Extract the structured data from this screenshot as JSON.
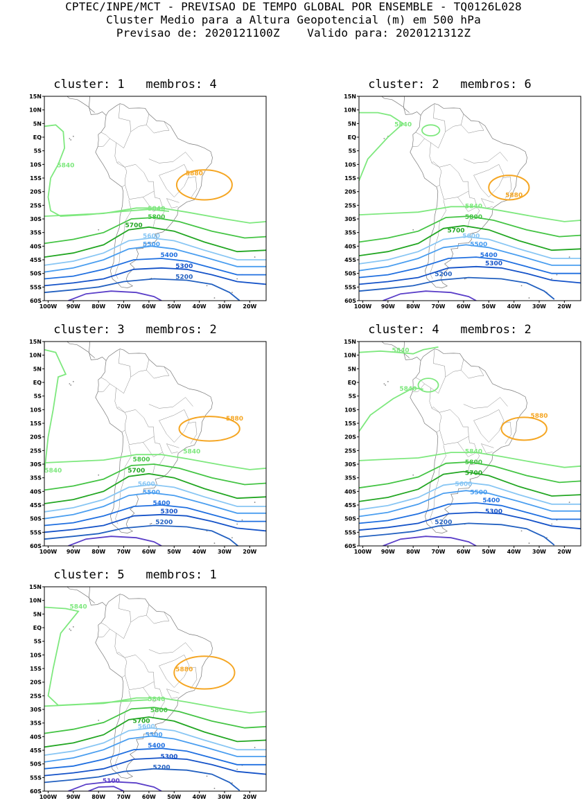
{
  "header": {
    "line1": "CPTEC/INPE/MCT - PREVISAO DE TEMPO GLOBAL POR ENSEMBLE - TQ0126L028",
    "line2": "Cluster Medio para a Altura Geopotencial (m) em 500 hPa",
    "line3": "Previsao de: 2020121100Z    Valido para: 2020121312Z"
  },
  "lat_ticks": [
    "15N",
    "10N",
    "5N",
    "EQ",
    "5S",
    "10S",
    "15S",
    "20S",
    "25S",
    "30S",
    "35S",
    "40S",
    "45S",
    "50S",
    "55S",
    "60S"
  ],
  "lon_ticks": [
    "100W",
    "90W",
    "80W",
    "70W",
    "60W",
    "50W",
    "40W",
    "30W",
    "20W"
  ],
  "contour_colors": {
    "5880": "#f5a623",
    "5840": "#7ee87e",
    "5800": "#44c444",
    "5700": "#22a622",
    "5600": "#88c6f4",
    "5500": "#4a9ef0",
    "5400": "#1f6fe0",
    "5300": "#1452c8",
    "5200": "#2260c0",
    "5100": "#5a3ec8"
  },
  "panels": [
    {
      "title": "cluster: 1   membros: 4",
      "labels": [
        {
          "text": "5880",
          "lon": -42,
          "lat": -14
        },
        {
          "text": "5840",
          "lon": -93,
          "lat": -11
        },
        {
          "text": "5840",
          "lon": -57,
          "lat": -27
        },
        {
          "text": "5800",
          "lon": -57,
          "lat": -30
        },
        {
          "text": "5700",
          "lon": -66,
          "lat": -33
        },
        {
          "text": "5600",
          "lon": -59,
          "lat": -37
        },
        {
          "text": "5500",
          "lon": -59,
          "lat": -40
        },
        {
          "text": "5400",
          "lon": -52,
          "lat": -44
        },
        {
          "text": "5300",
          "lon": -46,
          "lat": -48
        },
        {
          "text": "5200",
          "lon": -46,
          "lat": -52
        }
      ]
    },
    {
      "title": "cluster: 2   membros: 6",
      "labels": [
        {
          "text": "5840",
          "lon": -84,
          "lat": 4
        },
        {
          "text": "5880",
          "lon": -40,
          "lat": -22
        },
        {
          "text": "5840",
          "lon": -56,
          "lat": -26
        },
        {
          "text": "5800",
          "lon": -56,
          "lat": -30
        },
        {
          "text": "5700",
          "lon": -63,
          "lat": -35
        },
        {
          "text": "5600",
          "lon": -57,
          "lat": -37
        },
        {
          "text": "5500",
          "lon": -54,
          "lat": -40
        },
        {
          "text": "5400",
          "lon": -50,
          "lat": -44
        },
        {
          "text": "5300",
          "lon": -48,
          "lat": -47
        },
        {
          "text": "5200",
          "lon": -68,
          "lat": -51
        }
      ]
    },
    {
      "title": "cluster: 3   membros: 2",
      "labels": [
        {
          "text": "5880",
          "lon": -26,
          "lat": -14
        },
        {
          "text": "5840",
          "lon": -43,
          "lat": -26
        },
        {
          "text": "5840",
          "lon": -98,
          "lat": -33
        },
        {
          "text": "5800",
          "lon": -63,
          "lat": -29
        },
        {
          "text": "5700",
          "lon": -65,
          "lat": -33
        },
        {
          "text": "5600",
          "lon": -61,
          "lat": -38
        },
        {
          "text": "5500",
          "lon": -59,
          "lat": -41
        },
        {
          "text": "5400",
          "lon": -55,
          "lat": -45
        },
        {
          "text": "5300",
          "lon": -52,
          "lat": -48
        },
        {
          "text": "5200",
          "lon": -54,
          "lat": -52
        }
      ]
    },
    {
      "title": "cluster: 4   membros: 2",
      "labels": [
        {
          "text": "5840",
          "lon": -85,
          "lat": 11
        },
        {
          "text": "5840",
          "lon": -82,
          "lat": -3
        },
        {
          "text": "5880",
          "lon": -30,
          "lat": -13
        },
        {
          "text": "5840",
          "lon": -56,
          "lat": -26
        },
        {
          "text": "5800",
          "lon": -56,
          "lat": -30
        },
        {
          "text": "5700",
          "lon": -56,
          "lat": -34
        },
        {
          "text": "5600",
          "lon": -60,
          "lat": -38
        },
        {
          "text": "5500",
          "lon": -54,
          "lat": -41
        },
        {
          "text": "5400",
          "lon": -49,
          "lat": -44
        },
        {
          "text": "5300",
          "lon": -48,
          "lat": -48
        },
        {
          "text": "5200",
          "lon": -68,
          "lat": -52
        }
      ]
    },
    {
      "title": "cluster: 5   membros: 1",
      "labels": [
        {
          "text": "5840",
          "lon": -88,
          "lat": 7
        },
        {
          "text": "5880",
          "lon": -46,
          "lat": -16
        },
        {
          "text": "5840",
          "lon": -57,
          "lat": -27
        },
        {
          "text": "5800",
          "lon": -56,
          "lat": -31
        },
        {
          "text": "5700",
          "lon": -63,
          "lat": -35
        },
        {
          "text": "5600",
          "lon": -61,
          "lat": -37
        },
        {
          "text": "5500",
          "lon": -58,
          "lat": -40
        },
        {
          "text": "5400",
          "lon": -57,
          "lat": -44
        },
        {
          "text": "5300",
          "lon": -52,
          "lat": -48
        },
        {
          "text": "5200",
          "lon": -55,
          "lat": -52
        },
        {
          "text": "5100",
          "lon": -75,
          "lat": -57
        }
      ]
    }
  ]
}
